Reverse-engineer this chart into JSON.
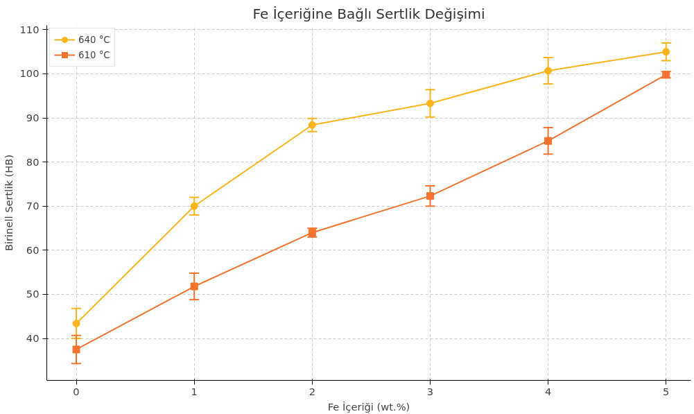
{
  "chart_data": {
    "type": "line",
    "title": "Fe İçeriğine Bağlı Sertlik Değişimi",
    "xlabel": "Fe İçeriği (wt.%)",
    "ylabel": "Birinell Sertlik (HB)",
    "x": [
      0,
      1,
      2,
      3,
      4,
      5
    ],
    "series": [
      {
        "name": "640 °C",
        "color": "#fbb41a",
        "marker": "circle",
        "values": [
          43.4,
          70.0,
          88.4,
          93.3,
          100.7,
          105.0
        ],
        "errors": [
          3.4,
          2.0,
          1.5,
          3.1,
          3.0,
          2.0
        ]
      },
      {
        "name": "610 °C",
        "color": "#f4742f",
        "marker": "square",
        "values": [
          37.5,
          51.8,
          64.0,
          72.3,
          84.8,
          99.8
        ],
        "errors": [
          3.2,
          3.0,
          1.0,
          2.3,
          3.0,
          0.7
        ]
      }
    ],
    "xlim": [
      -0.25,
      5.21
    ],
    "ylim": [
      30.5,
      111
    ],
    "xticks": [
      0,
      1,
      2,
      3,
      4,
      5
    ],
    "yticks": [
      40,
      50,
      60,
      70,
      80,
      90,
      100,
      110
    ],
    "grid": true,
    "legend": "top left",
    "line_style": "solid"
  }
}
